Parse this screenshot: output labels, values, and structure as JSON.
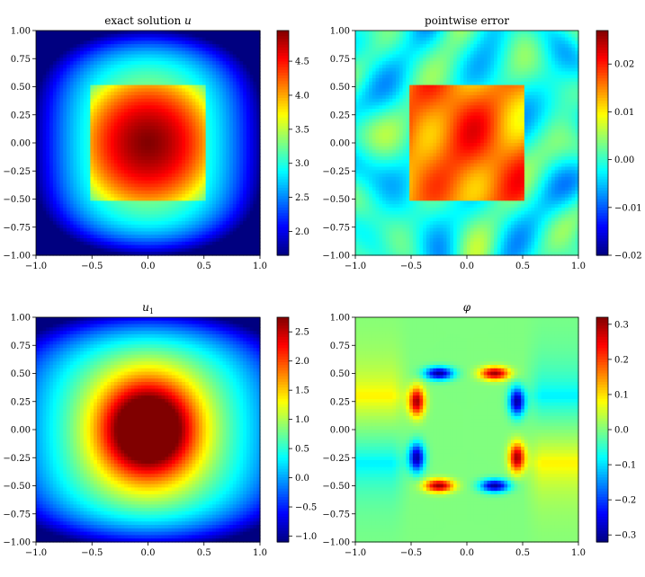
{
  "chart_data": [
    {
      "type": "heatmap",
      "title": "exact solution u",
      "xlim": [
        -1.0,
        1.0
      ],
      "ylim": [
        -1.0,
        1.0
      ],
      "xticks": [
        "−1.0",
        "−0.5",
        "0.0",
        "0.5",
        "1.0"
      ],
      "yticks": [
        "1.00",
        "0.75",
        "0.50",
        "0.25",
        "0.00",
        "−0.25",
        "−0.50",
        "−0.75",
        "−1.00"
      ],
      "colormap": "jet",
      "vmin": 1.65,
      "vmax": 4.95,
      "colorbar_ticks": [
        "4.5",
        "4.0",
        "3.5",
        "3.0",
        "2.5",
        "2.0"
      ],
      "colorbar_tick_values": [
        4.5,
        4.0,
        3.5,
        3.0,
        2.5,
        2.0
      ],
      "field": "exact"
    },
    {
      "type": "heatmap",
      "title": "pointwise error",
      "xlim": [
        -1.0,
        1.0
      ],
      "ylim": [
        -1.0,
        1.0
      ],
      "xticks": [
        "−1.0",
        "−0.5",
        "0.0",
        "0.5",
        "1.0"
      ],
      "yticks": [
        "1.00",
        "0.75",
        "0.50",
        "0.25",
        "0.00",
        "−0.25",
        "−0.50",
        "−0.75",
        "−1.00"
      ],
      "colormap": "jet",
      "vmin": -0.02,
      "vmax": 0.027,
      "colorbar_ticks": [
        "0.02",
        "0.01",
        "0.00",
        "−0.01",
        "−0.02"
      ],
      "colorbar_tick_values": [
        0.02,
        0.01,
        0.0,
        -0.01,
        -0.02
      ],
      "field": "error"
    },
    {
      "type": "heatmap",
      "title": "u1",
      "xlim": [
        -1.0,
        1.0
      ],
      "ylim": [
        -1.0,
        1.0
      ],
      "xticks": [
        "−1.0",
        "−0.5",
        "0.0",
        "0.5",
        "1.0"
      ],
      "yticks": [
        "1.00",
        "0.75",
        "0.50",
        "0.25",
        "0.00",
        "−0.25",
        "−0.50",
        "−0.75",
        "−1.00"
      ],
      "colormap": "jet",
      "vmin": -1.1,
      "vmax": 2.75,
      "colorbar_ticks": [
        "2.5",
        "2.0",
        "1.5",
        "1.0",
        "0.5",
        "0.0",
        "−0.5",
        "−1.0"
      ],
      "colorbar_tick_values": [
        2.5,
        2.0,
        1.5,
        1.0,
        0.5,
        0.0,
        -0.5,
        -1.0
      ],
      "field": "u1"
    },
    {
      "type": "heatmap",
      "title": "φ",
      "xlim": [
        -1.0,
        1.0
      ],
      "ylim": [
        -1.0,
        1.0
      ],
      "xticks": [
        "−1.0",
        "−0.5",
        "0.0",
        "0.5",
        "1.0"
      ],
      "yticks": [
        "1.00",
        "0.75",
        "0.50",
        "0.25",
        "0.00",
        "−0.25",
        "−0.50",
        "−0.75",
        "−1.00"
      ],
      "colormap": "jet",
      "vmin": -0.32,
      "vmax": 0.32,
      "colorbar_ticks": [
        "0.3",
        "0.2",
        "0.1",
        "0.0",
        "−0.1",
        "−0.2",
        "−0.3"
      ],
      "colorbar_tick_values": [
        0.3,
        0.2,
        0.1,
        0.0,
        -0.1,
        -0.2,
        -0.3
      ],
      "field": "phi"
    }
  ]
}
